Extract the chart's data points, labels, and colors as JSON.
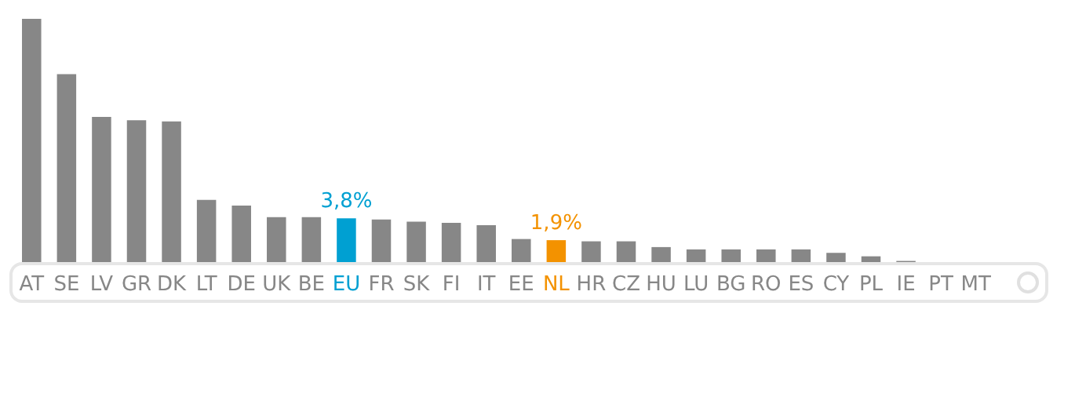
{
  "chart_data": {
    "type": "bar",
    "categories": [
      "AT",
      "SE",
      "LV",
      "GR",
      "DK",
      "LT",
      "DE",
      "UK",
      "BE",
      "EU",
      "FR",
      "SK",
      "FI",
      "IT",
      "EE",
      "NL",
      "HR",
      "CZ",
      "HU",
      "LU",
      "BG",
      "RO",
      "ES",
      "CY",
      "PL",
      "IE",
      "PT",
      "MT"
    ],
    "values": [
      21.1,
      16.3,
      12.6,
      12.3,
      12.2,
      5.4,
      4.9,
      3.9,
      3.9,
      3.8,
      3.7,
      3.5,
      3.4,
      3.2,
      2.0,
      1.9,
      1.8,
      1.8,
      1.3,
      1.1,
      1.1,
      1.1,
      1.1,
      0.8,
      0.5,
      0.1,
      0,
      0
    ],
    "colors": [
      "#878787",
      "#878787",
      "#878787",
      "#878787",
      "#878787",
      "#878787",
      "#878787",
      "#878787",
      "#878787",
      "#00a0d2",
      "#878787",
      "#878787",
      "#878787",
      "#878787",
      "#878787",
      "#f39200",
      "#878787",
      "#878787",
      "#878787",
      "#878787",
      "#878787",
      "#878787",
      "#878787",
      "#878787",
      "#878787",
      "#878787",
      "#878787",
      "#878787"
    ],
    "value_labels": [
      null,
      null,
      null,
      null,
      null,
      null,
      null,
      null,
      null,
      "3,8%",
      null,
      null,
      null,
      null,
      null,
      "1,9%",
      null,
      null,
      null,
      null,
      null,
      null,
      null,
      null,
      null,
      null,
      null,
      null
    ]
  }
}
